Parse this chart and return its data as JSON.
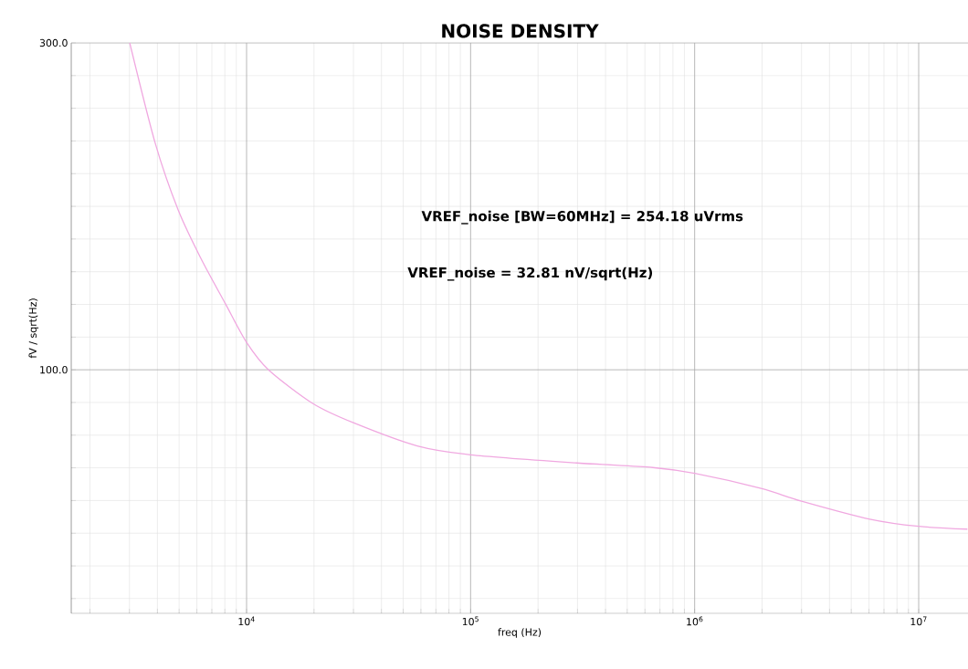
{
  "chart_data": {
    "type": "line",
    "title": "NOISE DENSITY",
    "xlabel": "freq (Hz)",
    "ylabel": "fV / sqrt(Hz)",
    "annotations": [
      "VREF_noise [BW=60MHz] = 254.18 uVrms",
      "VREF_noise = 32.81 nV/sqrt(Hz)"
    ],
    "log": "x",
    "grid": true,
    "marker": "none",
    "line_style": "solid",
    "xlim": [
      1650,
      16600000
    ],
    "ylim": [
      -49,
      300
    ],
    "xticks": [
      {
        "value": 2000,
        "label": null
      },
      {
        "value": 3000,
        "label": null
      },
      {
        "value": 4000,
        "label": null
      },
      {
        "value": 5000,
        "label": null
      },
      {
        "value": 6000,
        "label": null
      },
      {
        "value": 7000,
        "label": null
      },
      {
        "value": 8000,
        "label": null
      },
      {
        "value": 9000,
        "label": null
      },
      {
        "value": 10000,
        "label": "10$^{4}$"
      },
      {
        "value": 20000,
        "label": null
      },
      {
        "value": 30000,
        "label": null
      },
      {
        "value": 40000,
        "label": null
      },
      {
        "value": 50000,
        "label": null
      },
      {
        "value": 60000,
        "label": null
      },
      {
        "value": 70000,
        "label": null
      },
      {
        "value": 80000,
        "label": null
      },
      {
        "value": 90000,
        "label": null
      },
      {
        "value": 100000,
        "label": "10$^{5}$"
      },
      {
        "value": 200000,
        "label": null
      },
      {
        "value": 300000,
        "label": null
      },
      {
        "value": 400000,
        "label": null
      },
      {
        "value": 500000,
        "label": null
      },
      {
        "value": 600000,
        "label": null
      },
      {
        "value": 700000,
        "label": null
      },
      {
        "value": 800000,
        "label": null
      },
      {
        "value": 900000,
        "label": null
      },
      {
        "value": 1000000,
        "label": "10$^{6}$"
      },
      {
        "value": 2000000,
        "label": null
      },
      {
        "value": 3000000,
        "label": null
      },
      {
        "value": 4000000,
        "label": null
      },
      {
        "value": 5000000,
        "label": null
      },
      {
        "value": 6000000,
        "label": null
      },
      {
        "value": 7000000,
        "label": null
      },
      {
        "value": 8000000,
        "label": null
      },
      {
        "value": 9000000,
        "label": null
      },
      {
        "value": 10000000,
        "label": "10$^{7}$"
      }
    ],
    "yticks": [
      {
        "value": -40,
        "label": null
      },
      {
        "value": -20,
        "label": null
      },
      {
        "value": 0,
        "label": null
      },
      {
        "value": 20,
        "label": null
      },
      {
        "value": 40,
        "label": null
      },
      {
        "value": 60,
        "label": null
      },
      {
        "value": 80,
        "label": null
      },
      {
        "value": 100,
        "label": "100.0"
      },
      {
        "value": 120,
        "label": null
      },
      {
        "value": 140,
        "label": null
      },
      {
        "value": 160,
        "label": null
      },
      {
        "value": 180,
        "label": null
      },
      {
        "value": 200,
        "label": null
      },
      {
        "value": 220,
        "label": null
      },
      {
        "value": 240,
        "label": null
      },
      {
        "value": 260,
        "label": null
      },
      {
        "value": 280,
        "label": null
      },
      {
        "value": 300,
        "label": "300.0"
      }
    ],
    "x": [
      3010,
      3914,
      4950,
      6250,
      8060,
      10000,
      12530,
      19800,
      29980,
      57800,
      100000,
      298000,
      650000,
      1000000,
      1980000,
      3000000,
      6050000,
      10000000,
      16500000
    ],
    "series": [
      {
        "color": "#f0a8e0",
        "values": [
          300,
          238.5,
          197.8,
          168.2,
          140.2,
          116.8,
          100,
          79.3,
          67.6,
          53.4,
          48.0,
          43.0,
          40.2,
          36.6,
          27.4,
          19.6,
          8.6,
          4.2,
          2.5
        ]
      }
    ]
  }
}
